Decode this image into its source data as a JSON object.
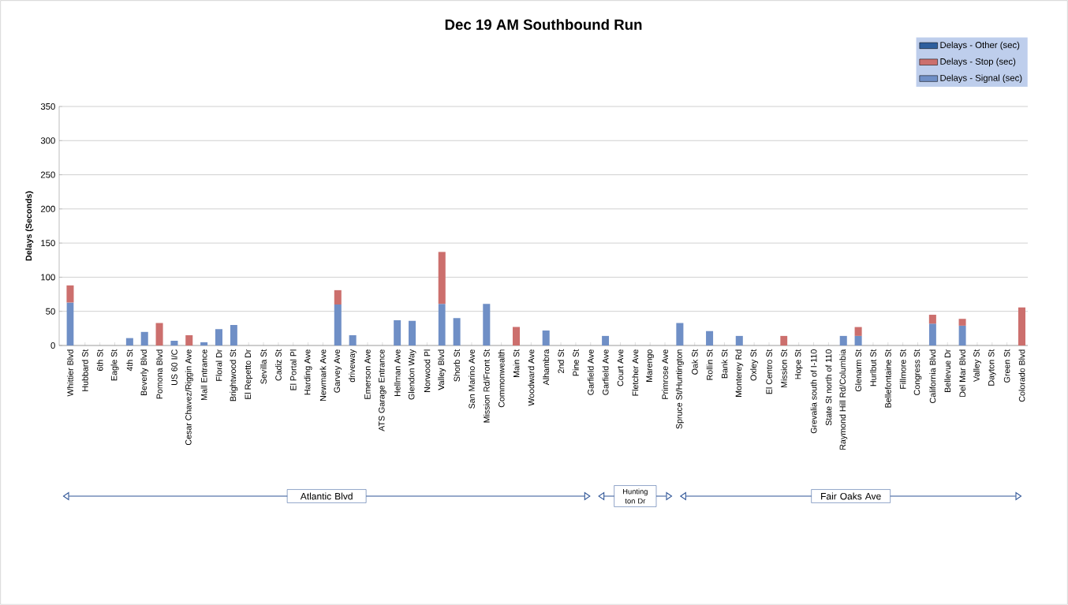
{
  "chart_data": {
    "type": "bar",
    "stacked": true,
    "title": "Dec 19 AM Southbound Run",
    "ylabel": "Delays (Seconds)",
    "categories": [
      "Whittier Blvd",
      "Hubbard St",
      "6th St",
      "Eagle St",
      "4th St",
      "Beverly Blvd",
      "Pomona Blvd",
      "US 60 I/C",
      "Cesar Chavez/Riggin Ave",
      "Mall Entrance",
      "Floral Dr",
      "Brightwood St",
      "El Repetto Dr",
      "Sevilla St",
      "Cadiz St",
      "El Portal Pl",
      "Harding Ave",
      "Newmark Ave",
      "Garvey Ave",
      "driveway",
      "Emerson Ave",
      "ATS Garage Entrance",
      "Hellman Ave",
      "Glendon Way",
      "Norwood Pl",
      "Valley Blvd",
      "Shorb St",
      "San Marino Ave",
      "Mission Rd/Front St",
      "Commonwealth",
      "Main St",
      "Woodward Ave",
      "Alhambra",
      "2nd St",
      "Pine St",
      "Garfield Ave",
      "Garfield Ave",
      "Court Ave",
      "Fletcher Ave",
      "Marengo",
      "Primrose Ave",
      "Spruce St/Huntington",
      "Oak St",
      "Rollin St",
      "Bank St",
      "Monterey Rd",
      "Oxley St",
      "El Centro St",
      "Mission St",
      "Hope St",
      "Grevalia south of I-110",
      "State St north of 110",
      "Raymond Hill Rd/Columbia",
      "Glenarm St",
      "Hurlbut St",
      "Bellefontaine St",
      "Fillmore St",
      "Congress St",
      "California Blvd",
      "Bellevue Dr",
      "Del Mar Blvd",
      "Valley St",
      "Dayton St",
      "Green St",
      "Colorado Blvd"
    ],
    "series": [
      {
        "name": "Delays - Signal (sec)",
        "color": "#6f8fc6",
        "values": [
          63,
          null,
          null,
          null,
          11,
          20,
          null,
          7,
          null,
          5,
          24,
          30,
          null,
          null,
          null,
          null,
          null,
          null,
          60,
          15,
          null,
          null,
          37,
          36,
          null,
          61,
          40,
          null,
          61,
          null,
          null,
          null,
          22,
          null,
          null,
          null,
          14,
          null,
          null,
          null,
          null,
          33,
          null,
          21,
          null,
          14,
          null,
          null,
          null,
          null,
          null,
          null,
          14,
          14,
          null,
          null,
          null,
          null,
          32,
          null,
          29,
          null,
          null,
          null,
          null
        ]
      },
      {
        "name": "Delays - Stop (sec)",
        "color": "#cc6f6d",
        "values": [
          25,
          null,
          null,
          null,
          null,
          null,
          33,
          null,
          15,
          null,
          null,
          null,
          null,
          null,
          null,
          null,
          null,
          null,
          21,
          null,
          null,
          null,
          null,
          null,
          null,
          76,
          null,
          null,
          null,
          null,
          27,
          null,
          null,
          null,
          null,
          null,
          null,
          null,
          null,
          null,
          null,
          null,
          null,
          null,
          null,
          null,
          null,
          null,
          14,
          null,
          null,
          null,
          null,
          13,
          null,
          null,
          null,
          null,
          13,
          null,
          10,
          null,
          null,
          null,
          56
        ]
      },
      {
        "name": "Delays - Other (sec)",
        "color": "#2e5f9e",
        "values": [
          null,
          null,
          null,
          null,
          null,
          null,
          null,
          null,
          null,
          null,
          null,
          null,
          null,
          null,
          null,
          null,
          null,
          null,
          null,
          null,
          null,
          null,
          null,
          null,
          null,
          null,
          null,
          null,
          null,
          null,
          null,
          null,
          null,
          null,
          null,
          null,
          null,
          null,
          null,
          null,
          null,
          null,
          null,
          null,
          null,
          null,
          null,
          null,
          null,
          null,
          null,
          null,
          null,
          null,
          null,
          null,
          null,
          null,
          null,
          null,
          null,
          null,
          null,
          null,
          null
        ]
      }
    ],
    "ylim": [
      0,
      350
    ],
    "yticks": [
      0,
      50,
      100,
      150,
      200,
      250,
      300,
      350
    ],
    "grid": "y",
    "legend": "top right",
    "annotations": [
      "Atlantic Blvd",
      "Hunting ton Dr",
      "Fair Oaks Ave"
    ]
  }
}
